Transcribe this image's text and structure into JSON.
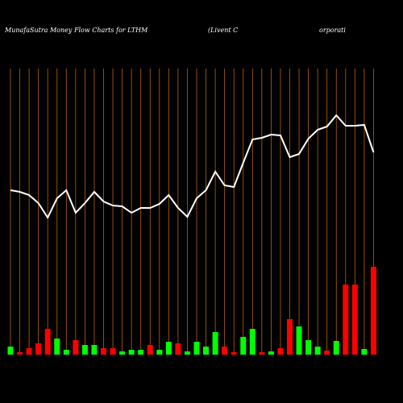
{
  "chart_data": {
    "type": "money-flow",
    "title": "MunafaSutra  Money Flow  Charts for LTHM",
    "subtitle": [
      "(Livent C",
      "orporati"
    ],
    "categories": [
      null,
      null,
      null,
      null,
      null,
      null,
      null,
      null,
      null,
      null,
      null,
      null,
      null,
      null,
      null,
      null,
      null,
      null,
      null,
      null,
      null,
      null,
      null,
      null,
      null,
      null,
      null,
      null,
      null,
      null,
      null,
      null,
      null,
      null,
      null,
      null,
      null,
      null,
      null,
      null
    ],
    "price": {
      "color": "#ffffff",
      "values": [
        204,
        202,
        198,
        188,
        170,
        194,
        204,
        176,
        188,
        202,
        190,
        185,
        184,
        176,
        182,
        182,
        187,
        198,
        182,
        171,
        194,
        204,
        227,
        210,
        208,
        238,
        267,
        269,
        273,
        272,
        245,
        249,
        268,
        279,
        283,
        297,
        284,
        284,
        285,
        251
      ]
    },
    "volume": {
      "values": [
        10,
        3,
        8,
        14,
        32,
        20,
        6,
        18,
        12,
        12,
        8,
        8,
        4,
        6,
        6,
        12,
        6,
        16,
        14,
        4,
        16,
        10,
        28,
        10,
        3,
        22,
        32,
        3,
        4,
        8,
        44,
        35,
        18,
        10,
        5,
        17,
        87,
        87,
        7,
        109
      ],
      "colors": [
        "#00ff00",
        "#ff0000",
        "#ff0000",
        "#ff0000",
        "#ff0000",
        "#00ff00",
        "#00ff00",
        "#ff0000",
        "#00ff00",
        "#00ff00",
        "#ff0000",
        "#ff0000",
        "#00ff00",
        "#00ff00",
        "#00ff00",
        "#ff0000",
        "#00ff00",
        "#00ff00",
        "#ff0000",
        "#00ff00",
        "#00ff00",
        "#00ff00",
        "#00ff00",
        "#ff0000",
        "#ff0000",
        "#00ff00",
        "#00ff00",
        "#ff0000",
        "#00ff00",
        "#ff0000",
        "#ff0000",
        "#00ff00",
        "#00ff00",
        "#00ff00",
        "#ff0000",
        "#00ff00",
        "#ff0000",
        "#ff0000",
        "#00ff00",
        "#ff0000"
      ]
    },
    "ylim": [
      0,
      360
    ],
    "grid_color": "#b8620a"
  }
}
